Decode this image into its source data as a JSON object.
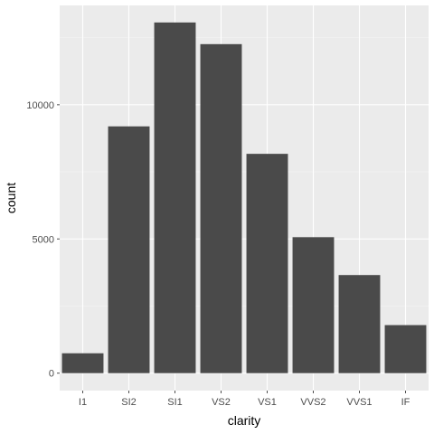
{
  "chart_data": {
    "type": "bar",
    "xlabel": "clarity",
    "ylabel": "count",
    "categories": [
      "I1",
      "SI2",
      "SI1",
      "VS2",
      "VS1",
      "VVS2",
      "VVS1",
      "IF"
    ],
    "values": [
      741,
      9194,
      13065,
      12258,
      8171,
      5066,
      3655,
      1790
    ],
    "ylim": [
      -650,
      13700
    ],
    "yticks": [
      0,
      5000,
      10000
    ],
    "ytick_labels": [
      "0",
      "5000",
      "10000"
    ],
    "grid": true,
    "legend": "none",
    "colors": {
      "bar": "#4a4a4a",
      "panel": "#ebebeb",
      "grid_major": "#ffffff",
      "grid_minor": "#f5f5f5",
      "tick": "#4d4d4d"
    }
  }
}
